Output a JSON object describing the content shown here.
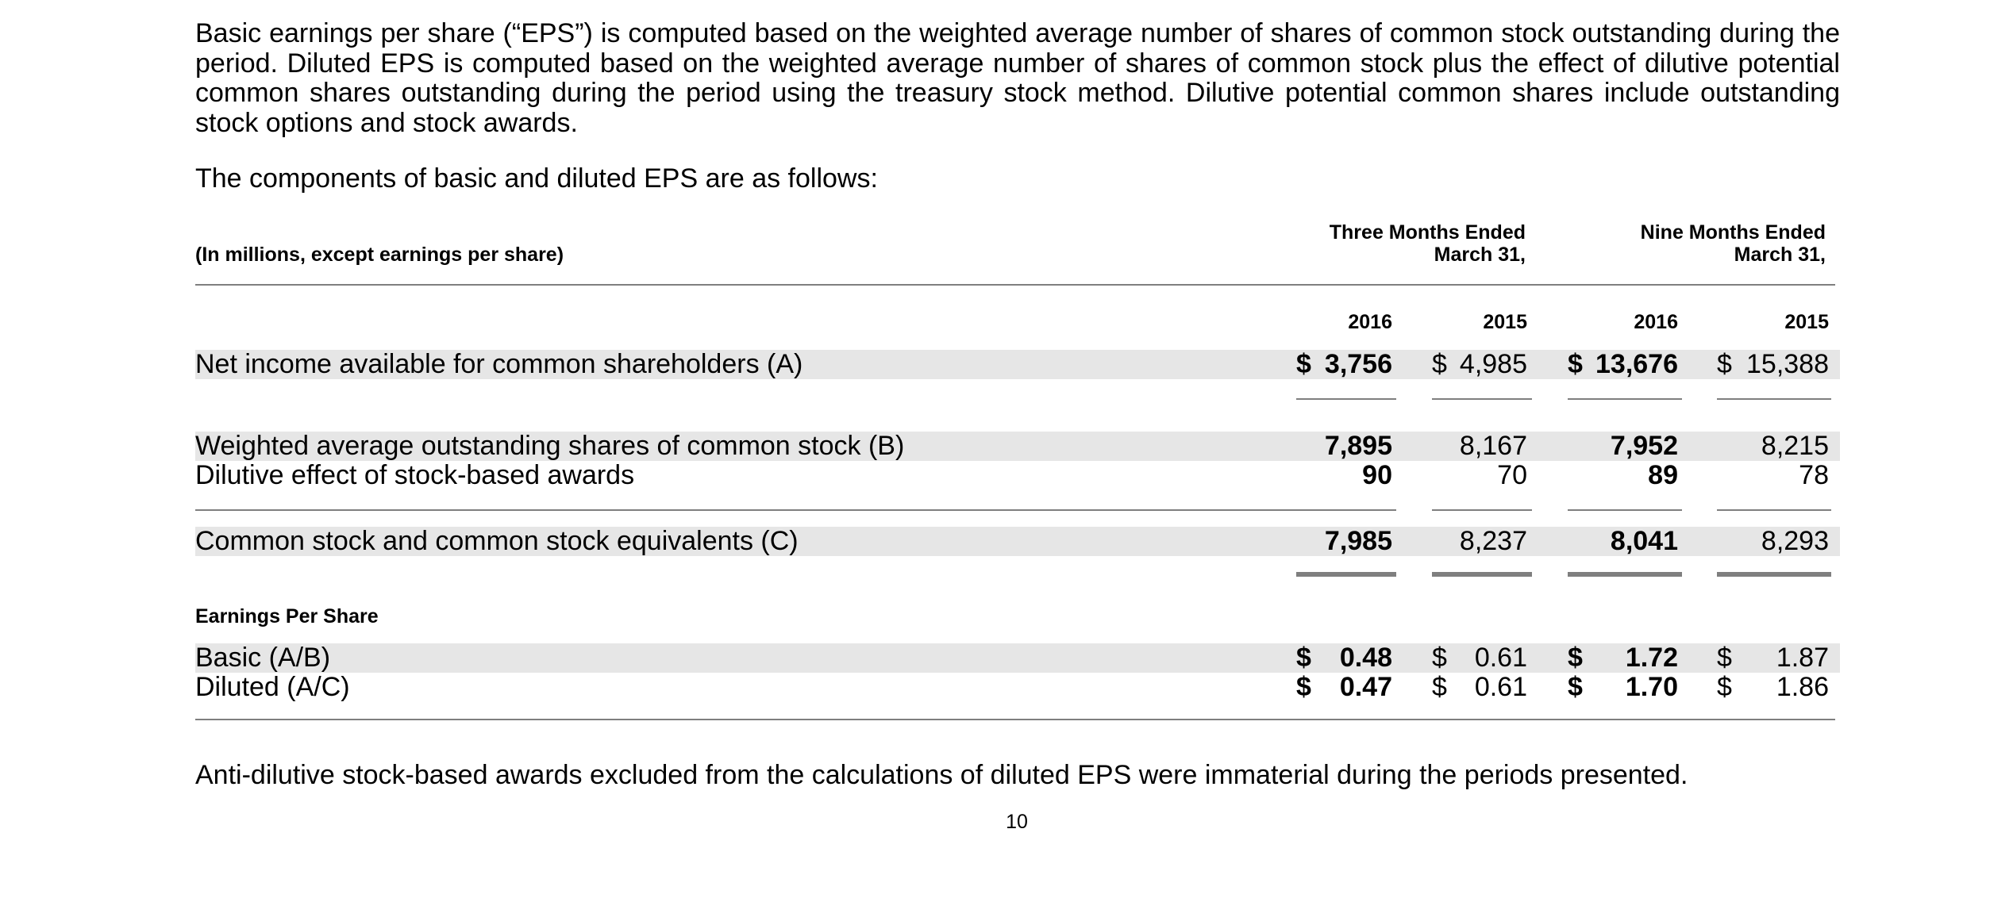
{
  "paragraphs": {
    "intro": "Basic earnings per share (“EPS”) is computed based on the weighted average number of shares of common stock outstanding during the period. Diluted EPS is computed based on the weighted average number of shares of common stock plus the effect of dilutive potential common shares outstanding during the period using the treasury stock method. Dilutive potential common shares include outstanding stock options and stock awards.",
    "components": "The components of basic and diluted EPS are as follows:",
    "anti_dilutive": "Anti-dilutive stock-based awards excluded from the calculations of diluted EPS were immaterial during the periods presented."
  },
  "table": {
    "units_label": "(In millions, except earnings per share)",
    "period_headers": [
      {
        "line1": "Three Months Ended",
        "line2": "March 31,"
      },
      {
        "line1": "Nine Months Ended",
        "line2": "March 31,"
      }
    ],
    "years": [
      "2016",
      "2015",
      "2016",
      "2015"
    ],
    "currency_symbol": "$",
    "rows": {
      "net_income": {
        "label": "Net income available for common shareholders (A)",
        "values": [
          "3,756",
          "4,985",
          "13,676",
          "15,388"
        ]
      },
      "weighted_avg": {
        "label": "Weighted average outstanding shares of common stock (B)",
        "values": [
          "7,895",
          "8,167",
          "7,952",
          "8,215"
        ]
      },
      "dilutive_effect": {
        "label": "Dilutive effect of stock-based awards",
        "values": [
          "90",
          "70",
          "89",
          "78"
        ]
      },
      "common_equivalents": {
        "label": "Common stock and common stock equivalents (C)",
        "values": [
          "7,985",
          "8,237",
          "8,041",
          "8,293"
        ]
      }
    },
    "eps_section_label": "Earnings Per Share",
    "eps_rows": {
      "basic": {
        "label": "Basic (A/B)",
        "values": [
          "0.48",
          "0.61",
          "1.72",
          "1.87"
        ]
      },
      "diluted": {
        "label": "Diluted (A/C)",
        "values": [
          "0.47",
          "0.61",
          "1.70",
          "1.86"
        ]
      }
    }
  },
  "page_number": "10"
}
